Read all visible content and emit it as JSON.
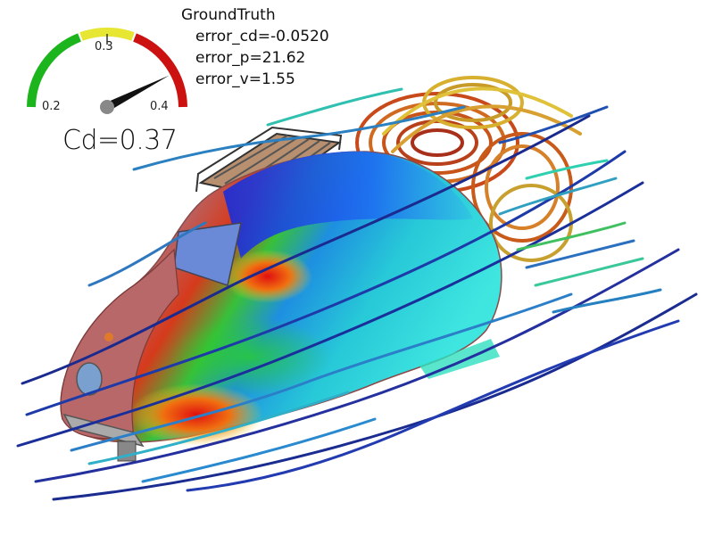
{
  "overlay": {
    "title": "GroundTruth",
    "error_cd": "error_cd=-0.0520",
    "error_p": "error_p=21.62",
    "error_v": "error_v=1.55"
  },
  "gauge": {
    "min_label": "0.2",
    "mid_label": "0.3",
    "max_label": "0.4",
    "value_text": "Cd=0.37",
    "value": 0.37,
    "min": 0.2,
    "max": 0.4,
    "colors": {
      "low": "#1db51d",
      "mid": "#e6e633",
      "high": "#cc1111"
    }
  },
  "scene": {
    "subject": "car-cfd-pressure-field",
    "colors": {
      "body_base": "#b86868",
      "streamline_slow": "#1a237e",
      "streamline_fast": "#26c6da",
      "wake_hot": "#d84315",
      "wake_warm": "#e6c43a"
    }
  }
}
